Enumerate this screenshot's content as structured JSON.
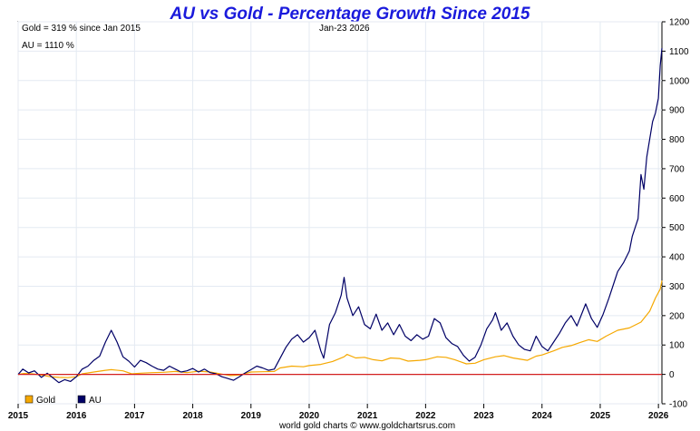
{
  "chart_data": {
    "type": "line",
    "title": "AU vs Gold - Percentage Growth Since 2015",
    "info_lines": [
      "Gold = 319 % since Jan 2015",
      "AU = 1110 %"
    ],
    "date_label": "Jan-23  2026",
    "credit": "world gold charts © www.goldchartsrus.com",
    "xlim": [
      2015.0,
      2026.06
    ],
    "ylim": [
      -100,
      1200
    ],
    "x_ticks": [
      2015,
      2016,
      2017,
      2018,
      2019,
      2020,
      2021,
      2022,
      2023,
      2024,
      2025,
      2026
    ],
    "x_tick_labels": [
      "2015",
      "2016",
      "2017",
      "2018",
      "2019",
      "2020",
      "2021",
      "2022",
      "2023",
      "2024",
      "2025",
      "2026"
    ],
    "y_ticks": [
      -100,
      0,
      100,
      200,
      300,
      400,
      500,
      600,
      700,
      800,
      900,
      1000,
      1100,
      1200
    ],
    "y_tick_labels": [
      "-100",
      "0",
      "100",
      "200",
      "300",
      "400",
      "500",
      "600",
      "700",
      "800",
      "900",
      "1000",
      "1100",
      "1200"
    ],
    "zero_line": 0,
    "legend": [
      {
        "name": "Gold",
        "color": "#f5a800"
      },
      {
        "name": "AU",
        "color": "#000066"
      }
    ],
    "series": [
      {
        "name": "Gold",
        "color": "#f5a800",
        "points": [
          [
            2015.0,
            0
          ],
          [
            2015.1,
            3
          ],
          [
            2015.25,
            2
          ],
          [
            2015.4,
            -2
          ],
          [
            2015.55,
            -8
          ],
          [
            2015.7,
            -10
          ],
          [
            2015.85,
            -11
          ],
          [
            2016.0,
            -8
          ],
          [
            2016.1,
            2
          ],
          [
            2016.3,
            8
          ],
          [
            2016.5,
            14
          ],
          [
            2016.6,
            16
          ],
          [
            2016.8,
            12
          ],
          [
            2016.95,
            2
          ],
          [
            2017.1,
            4
          ],
          [
            2017.3,
            6
          ],
          [
            2017.5,
            7
          ],
          [
            2017.7,
            10
          ],
          [
            2017.9,
            6
          ],
          [
            2018.1,
            11
          ],
          [
            2018.3,
            8
          ],
          [
            2018.5,
            1
          ],
          [
            2018.65,
            -4
          ],
          [
            2018.8,
            -2
          ],
          [
            2019.0,
            8
          ],
          [
            2019.2,
            9
          ],
          [
            2019.4,
            10
          ],
          [
            2019.5,
            22
          ],
          [
            2019.7,
            28
          ],
          [
            2019.9,
            26
          ],
          [
            2020.0,
            30
          ],
          [
            2020.2,
            34
          ],
          [
            2020.4,
            44
          ],
          [
            2020.6,
            60
          ],
          [
            2020.65,
            68
          ],
          [
            2020.8,
            56
          ],
          [
            2020.95,
            58
          ],
          [
            2021.1,
            50
          ],
          [
            2021.25,
            46
          ],
          [
            2021.4,
            56
          ],
          [
            2021.55,
            54
          ],
          [
            2021.7,
            45
          ],
          [
            2021.9,
            48
          ],
          [
            2022.0,
            50
          ],
          [
            2022.2,
            60
          ],
          [
            2022.35,
            58
          ],
          [
            2022.5,
            50
          ],
          [
            2022.7,
            36
          ],
          [
            2022.85,
            38
          ],
          [
            2023.0,
            50
          ],
          [
            2023.2,
            60
          ],
          [
            2023.35,
            64
          ],
          [
            2023.5,
            56
          ],
          [
            2023.75,
            48
          ],
          [
            2023.9,
            62
          ],
          [
            2024.0,
            66
          ],
          [
            2024.2,
            80
          ],
          [
            2024.35,
            92
          ],
          [
            2024.5,
            98
          ],
          [
            2024.65,
            108
          ],
          [
            2024.8,
            118
          ],
          [
            2024.95,
            112
          ],
          [
            2025.1,
            130
          ],
          [
            2025.3,
            150
          ],
          [
            2025.5,
            158
          ],
          [
            2025.7,
            178
          ],
          [
            2025.85,
            215
          ],
          [
            2025.95,
            260
          ],
          [
            2026.03,
            290
          ],
          [
            2026.06,
            319
          ]
        ]
      },
      {
        "name": "AU",
        "color": "#000066",
        "points": [
          [
            2015.0,
            0
          ],
          [
            2015.08,
            18
          ],
          [
            2015.18,
            5
          ],
          [
            2015.28,
            12
          ],
          [
            2015.4,
            -10
          ],
          [
            2015.5,
            4
          ],
          [
            2015.6,
            -12
          ],
          [
            2015.7,
            -28
          ],
          [
            2015.8,
            -18
          ],
          [
            2015.9,
            -24
          ],
          [
            2016.0,
            -8
          ],
          [
            2016.1,
            18
          ],
          [
            2016.2,
            28
          ],
          [
            2016.3,
            48
          ],
          [
            2016.4,
            62
          ],
          [
            2016.5,
            110
          ],
          [
            2016.55,
            130
          ],
          [
            2016.6,
            150
          ],
          [
            2016.7,
            110
          ],
          [
            2016.8,
            60
          ],
          [
            2016.9,
            45
          ],
          [
            2017.0,
            25
          ],
          [
            2017.1,
            48
          ],
          [
            2017.2,
            40
          ],
          [
            2017.3,
            28
          ],
          [
            2017.4,
            18
          ],
          [
            2017.5,
            14
          ],
          [
            2017.6,
            28
          ],
          [
            2017.7,
            18
          ],
          [
            2017.8,
            8
          ],
          [
            2017.9,
            12
          ],
          [
            2018.0,
            20
          ],
          [
            2018.1,
            8
          ],
          [
            2018.2,
            18
          ],
          [
            2018.3,
            6
          ],
          [
            2018.4,
            2
          ],
          [
            2018.5,
            -8
          ],
          [
            2018.6,
            -14
          ],
          [
            2018.7,
            -20
          ],
          [
            2018.8,
            -8
          ],
          [
            2018.9,
            5
          ],
          [
            2019.0,
            16
          ],
          [
            2019.1,
            28
          ],
          [
            2019.2,
            22
          ],
          [
            2019.3,
            14
          ],
          [
            2019.4,
            18
          ],
          [
            2019.5,
            55
          ],
          [
            2019.6,
            92
          ],
          [
            2019.7,
            120
          ],
          [
            2019.8,
            135
          ],
          [
            2019.9,
            110
          ],
          [
            2020.0,
            125
          ],
          [
            2020.1,
            150
          ],
          [
            2020.2,
            80
          ],
          [
            2020.25,
            55
          ],
          [
            2020.35,
            170
          ],
          [
            2020.45,
            210
          ],
          [
            2020.55,
            270
          ],
          [
            2020.6,
            330
          ],
          [
            2020.65,
            260
          ],
          [
            2020.75,
            200
          ],
          [
            2020.85,
            230
          ],
          [
            2020.95,
            170
          ],
          [
            2021.05,
            155
          ],
          [
            2021.15,
            205
          ],
          [
            2021.25,
            150
          ],
          [
            2021.35,
            175
          ],
          [
            2021.45,
            135
          ],
          [
            2021.55,
            170
          ],
          [
            2021.65,
            130
          ],
          [
            2021.75,
            115
          ],
          [
            2021.85,
            135
          ],
          [
            2021.95,
            120
          ],
          [
            2022.05,
            130
          ],
          [
            2022.15,
            190
          ],
          [
            2022.25,
            175
          ],
          [
            2022.35,
            125
          ],
          [
            2022.45,
            105
          ],
          [
            2022.55,
            95
          ],
          [
            2022.65,
            65
          ],
          [
            2022.75,
            45
          ],
          [
            2022.85,
            58
          ],
          [
            2022.95,
            100
          ],
          [
            2023.05,
            155
          ],
          [
            2023.15,
            185
          ],
          [
            2023.2,
            210
          ],
          [
            2023.3,
            150
          ],
          [
            2023.4,
            175
          ],
          [
            2023.5,
            130
          ],
          [
            2023.6,
            100
          ],
          [
            2023.7,
            85
          ],
          [
            2023.8,
            80
          ],
          [
            2023.9,
            130
          ],
          [
            2024.0,
            95
          ],
          [
            2024.1,
            80
          ],
          [
            2024.2,
            110
          ],
          [
            2024.3,
            140
          ],
          [
            2024.4,
            175
          ],
          [
            2024.5,
            200
          ],
          [
            2024.6,
            165
          ],
          [
            2024.7,
            215
          ],
          [
            2024.75,
            240
          ],
          [
            2024.85,
            190
          ],
          [
            2024.95,
            160
          ],
          [
            2025.05,
            205
          ],
          [
            2025.15,
            260
          ],
          [
            2025.25,
            320
          ],
          [
            2025.3,
            350
          ],
          [
            2025.4,
            380
          ],
          [
            2025.5,
            420
          ],
          [
            2025.55,
            470
          ],
          [
            2025.65,
            530
          ],
          [
            2025.7,
            680
          ],
          [
            2025.75,
            630
          ],
          [
            2025.8,
            740
          ],
          [
            2025.85,
            800
          ],
          [
            2025.9,
            860
          ],
          [
            2025.95,
            890
          ],
          [
            2026.0,
            940
          ],
          [
            2026.03,
            1050
          ],
          [
            2026.06,
            1110
          ]
        ]
      }
    ]
  }
}
